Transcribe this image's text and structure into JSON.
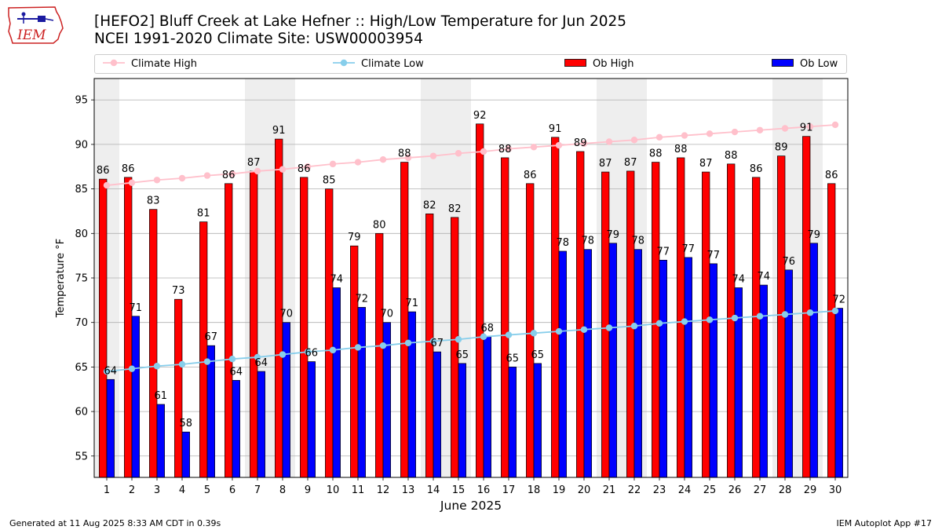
{
  "title": {
    "line1": "[HEFO2] Bluff Creek at Lake Hefner :: High/Low Temperature for Jun 2025",
    "line2": "NCEI 1991-2020 Climate Site: USW00003954"
  },
  "logo": {
    "text": "IEM",
    "color": "#cc2222"
  },
  "footer": {
    "generated": "Generated at 11 Aug 2025 8:33 AM CDT in 0.39s",
    "app": "IEM Autoplot App #17"
  },
  "colors": {
    "ob_high": "#ff0000",
    "ob_low": "#0000ff",
    "climate_high": "#ffc0cb",
    "climate_low": "#87ceeb",
    "weekend_shade": "#eeeeee",
    "grid": "#b0b0b0"
  },
  "chart_data": {
    "type": "bar",
    "xlabel": "June 2025",
    "ylabel": "Temperature °F",
    "ylim": [
      52.6,
      97.4
    ],
    "yticks": [
      55,
      60,
      65,
      70,
      75,
      80,
      85,
      90,
      95
    ],
    "grid": true,
    "legend_placement": "top",
    "categories": [
      1,
      2,
      3,
      4,
      5,
      6,
      7,
      8,
      9,
      10,
      11,
      12,
      13,
      14,
      15,
      16,
      17,
      18,
      19,
      20,
      21,
      22,
      23,
      24,
      25,
      26,
      27,
      28,
      29,
      30
    ],
    "shaded_days": [
      1,
      7,
      8,
      14,
      15,
      21,
      22,
      28,
      29
    ],
    "series": [
      {
        "name": "Ob High",
        "kind": "bar",
        "values": [
          86.1,
          86.3,
          82.7,
          72.6,
          81.3,
          85.6,
          87.0,
          90.6,
          86.3,
          85.0,
          78.6,
          80.0,
          88.0,
          82.2,
          81.8,
          92.3,
          88.5,
          85.6,
          90.8,
          89.2,
          86.9,
          87.0,
          88.0,
          88.5,
          86.9,
          87.8,
          86.3,
          88.7,
          90.9,
          85.6
        ],
        "labels": [
          86,
          86,
          83,
          73,
          81,
          86,
          87,
          91,
          86,
          85,
          79,
          80,
          88,
          82,
          82,
          92,
          88,
          86,
          91,
          89,
          87,
          87,
          88,
          88,
          87,
          88,
          86,
          89,
          91,
          86
        ]
      },
      {
        "name": "Ob Low",
        "kind": "bar",
        "values": [
          63.6,
          70.7,
          60.8,
          57.7,
          67.4,
          63.5,
          64.5,
          70.0,
          65.6,
          73.9,
          71.7,
          70.0,
          71.2,
          66.7,
          65.4,
          68.4,
          65.0,
          65.4,
          78.0,
          78.2,
          78.9,
          78.2,
          77.0,
          77.3,
          76.6,
          73.9,
          74.2,
          75.9,
          78.9,
          71.6
        ],
        "labels": [
          64,
          71,
          61,
          58,
          67,
          64,
          64,
          70,
          66,
          74,
          72,
          70,
          71,
          67,
          65,
          68,
          65,
          65,
          78,
          78,
          79,
          78,
          77,
          77,
          77,
          74,
          74,
          76,
          79,
          72
        ]
      },
      {
        "name": "Climate High",
        "kind": "line",
        "values": [
          85.4,
          85.7,
          86.0,
          86.2,
          86.5,
          86.7,
          87.0,
          87.2,
          87.5,
          87.8,
          88.0,
          88.3,
          88.5,
          88.7,
          89.0,
          89.2,
          89.5,
          89.7,
          89.9,
          90.1,
          90.3,
          90.5,
          90.8,
          91.0,
          91.2,
          91.4,
          91.6,
          91.8,
          92.0,
          92.2
        ]
      },
      {
        "name": "Climate Low",
        "kind": "line",
        "values": [
          64.5,
          64.8,
          65.1,
          65.3,
          65.6,
          65.9,
          66.1,
          66.4,
          66.7,
          66.9,
          67.2,
          67.4,
          67.7,
          67.9,
          68.1,
          68.4,
          68.6,
          68.8,
          69.0,
          69.2,
          69.4,
          69.6,
          69.9,
          70.1,
          70.3,
          70.5,
          70.7,
          70.9,
          71.1,
          71.3
        ]
      }
    ]
  }
}
